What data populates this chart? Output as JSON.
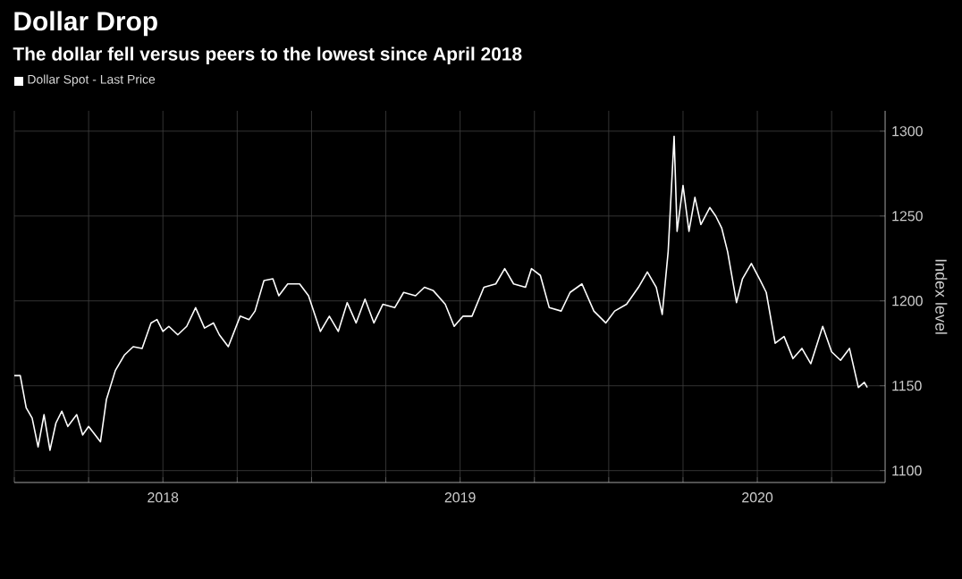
{
  "chart_data": {
    "type": "line",
    "title": "Dollar Drop",
    "subtitle": "The dollar fell versus peers to the lowest since April 2018",
    "ylabel": "Index level",
    "x": [
      2018.0,
      2018.02,
      2018.04,
      2018.06,
      2018.08,
      2018.1,
      2018.12,
      2018.14,
      2018.16,
      2018.18,
      2018.21,
      2018.23,
      2018.25,
      2018.29,
      2018.31,
      2018.34,
      2018.37,
      2018.4,
      2018.43,
      2018.46,
      2018.48,
      2018.5,
      2018.52,
      2018.55,
      2018.58,
      2018.61,
      2018.64,
      2018.67,
      2018.69,
      2018.72,
      2018.76,
      2018.79,
      2018.81,
      2018.84,
      2018.87,
      2018.89,
      2018.92,
      2018.96,
      2018.99,
      2019.03,
      2019.06,
      2019.09,
      2019.12,
      2019.15,
      2019.18,
      2019.21,
      2019.24,
      2019.28,
      2019.31,
      2019.35,
      2019.38,
      2019.41,
      2019.45,
      2019.48,
      2019.51,
      2019.54,
      2019.58,
      2019.62,
      2019.65,
      2019.68,
      2019.72,
      2019.74,
      2019.77,
      2019.8,
      2019.84,
      2019.87,
      2019.91,
      2019.95,
      2019.99,
      2020.02,
      2020.06,
      2020.1,
      2020.13,
      2020.16,
      2020.18,
      2020.2,
      2020.22,
      2020.23,
      2020.25,
      2020.27,
      2020.29,
      2020.31,
      2020.34,
      2020.36,
      2020.38,
      2020.4,
      2020.43,
      2020.45,
      2020.48,
      2020.51,
      2020.53,
      2020.56,
      2020.59,
      2020.62,
      2020.65,
      2020.68,
      2020.72,
      2020.75,
      2020.78,
      2020.81,
      2020.84,
      2020.86,
      2020.87
    ],
    "series": [
      {
        "name": "Dollar Spot - Last Price",
        "color": "#ffffff",
        "values": [
          1156,
          1156,
          1137,
          1131,
          1114,
          1133,
          1112,
          1128,
          1135,
          1126,
          1133,
          1121,
          1126,
          1117,
          1142,
          1159,
          1168,
          1173,
          1172,
          1187,
          1189,
          1182,
          1185,
          1180,
          1185,
          1196,
          1184,
          1187,
          1180,
          1173,
          1191,
          1189,
          1194,
          1212,
          1213,
          1203,
          1210,
          1210,
          1203,
          1182,
          1191,
          1182,
          1199,
          1187,
          1201,
          1187,
          1198,
          1196,
          1205,
          1203,
          1208,
          1206,
          1198,
          1185,
          1191,
          1191,
          1208,
          1210,
          1219,
          1210,
          1208,
          1219,
          1215,
          1196,
          1194,
          1205,
          1210,
          1194,
          1187,
          1194,
          1198,
          1208,
          1217,
          1208,
          1192,
          1229,
          1297,
          1241,
          1268,
          1241,
          1261,
          1245,
          1255,
          1250,
          1243,
          1229,
          1199,
          1213,
          1222,
          1212,
          1205,
          1175,
          1179,
          1166,
          1172,
          1163,
          1185,
          1170,
          1165,
          1172,
          1149,
          1152,
          1149
        ]
      }
    ],
    "xlim": [
      2018.0,
      2020.93
    ],
    "xticks": [
      {
        "value": 2018.0,
        "label": null
      },
      {
        "value": 2018.25,
        "label": null
      },
      {
        "value": 2018.5,
        "label": "2018"
      },
      {
        "value": 2018.75,
        "label": null
      },
      {
        "value": 2019.0,
        "label": null
      },
      {
        "value": 2019.25,
        "label": null
      },
      {
        "value": 2019.5,
        "label": "2019"
      },
      {
        "value": 2019.75,
        "label": null
      },
      {
        "value": 2020.0,
        "label": null
      },
      {
        "value": 2020.25,
        "label": null
      },
      {
        "value": 2020.5,
        "label": "2020"
      },
      {
        "value": 2020.75,
        "label": null
      }
    ],
    "ylim": [
      1093,
      1312
    ],
    "yticks": [
      1100,
      1150,
      1200,
      1250,
      1300
    ],
    "grid": true,
    "legend": "top left"
  }
}
